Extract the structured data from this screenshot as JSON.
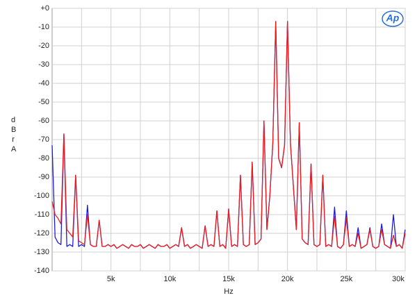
{
  "chart_data": {
    "type": "line",
    "xlabel": "Hz",
    "ylabel": "dBr A",
    "logo": "Ap",
    "xlim": [
      0,
      30000
    ],
    "ylim": [
      -140,
      0
    ],
    "xticks": [
      {
        "value": 5000,
        "label": "5k"
      },
      {
        "value": 10000,
        "label": "10k"
      },
      {
        "value": 15000,
        "label": "15k"
      },
      {
        "value": 20000,
        "label": "20k"
      },
      {
        "value": 25000,
        "label": "25k"
      },
      {
        "value": 30000,
        "label": "30k"
      }
    ],
    "x_minor_grid": [
      2500,
      7500,
      12500,
      17500,
      22500,
      27500
    ],
    "yticks": [
      {
        "value": 0,
        "label": "+0"
      },
      -10,
      -20,
      -30,
      -40,
      -50,
      -60,
      -70,
      -80,
      -90,
      -100,
      -110,
      -120,
      -130,
      -140
    ],
    "grid": true,
    "x": [
      0,
      250,
      500,
      750,
      1000,
      1250,
      1500,
      1750,
      2000,
      2250,
      2500,
      2750,
      3000,
      3250,
      3500,
      3750,
      4000,
      4250,
      4500,
      4750,
      5000,
      5250,
      5500,
      5750,
      6000,
      6250,
      6500,
      6750,
      7000,
      7250,
      7500,
      7750,
      8000,
      8250,
      8500,
      8750,
      9000,
      9250,
      9500,
      9750,
      10000,
      10250,
      10500,
      10750,
      11000,
      11250,
      11500,
      11750,
      12000,
      12250,
      12500,
      12750,
      13000,
      13250,
      13500,
      13750,
      14000,
      14250,
      14500,
      14750,
      15000,
      15250,
      15500,
      15750,
      16000,
      16250,
      16500,
      16750,
      17000,
      17250,
      17500,
      17750,
      18000,
      18250,
      18500,
      18750,
      19000,
      19250,
      19500,
      19750,
      20000,
      20250,
      20500,
      20750,
      21000,
      21250,
      21500,
      21750,
      22000,
      22250,
      22500,
      22750,
      23000,
      23250,
      23500,
      23750,
      24000,
      24250,
      24500,
      24750,
      25000,
      25250,
      25500,
      25750,
      26000,
      26250,
      26500,
      26750,
      27000,
      27250,
      27500,
      27750,
      28000,
      28250,
      28500,
      28750,
      29000,
      29250,
      29500,
      29750,
      30000
    ],
    "series": [
      {
        "color": "#1a1adc",
        "values": [
          -73,
          -122,
          -125,
          -126,
          -67,
          -127,
          -126,
          -127,
          -89,
          -127,
          -126,
          -127,
          -105,
          -126,
          -127,
          -127,
          -113,
          -127,
          -127,
          -126,
          -127,
          -126,
          -128,
          -127,
          -126,
          -127,
          -128,
          -126,
          -127,
          -127,
          -126,
          -128,
          -127,
          -126,
          -127,
          -128,
          -126,
          -127,
          -127,
          -126,
          -128,
          -127,
          -126,
          -127,
          -117,
          -127,
          -126,
          -128,
          -127,
          -126,
          -127,
          -128,
          -116,
          -127,
          -126,
          -127,
          -108,
          -127,
          -126,
          -128,
          -107,
          -127,
          -126,
          -127,
          -89,
          -126,
          -127,
          -126,
          -82,
          -126,
          -125,
          -123,
          -60,
          -118,
          -100,
          -72,
          -7,
          -80,
          -85,
          -73,
          -7,
          -72,
          -95,
          -118,
          -61,
          -123,
          -125,
          -126,
          -83,
          -126,
          -127,
          -126,
          -89,
          -127,
          -126,
          -127,
          -106,
          -127,
          -128,
          -126,
          -108,
          -127,
          -126,
          -127,
          -117,
          -128,
          -127,
          -126,
          -117,
          -127,
          -128,
          -127,
          -115,
          -126,
          -127,
          -128,
          -110,
          -127,
          -126,
          -128,
          -118
        ]
      },
      {
        "color": "#ee1c1c",
        "values": [
          -103,
          -110,
          -112,
          -115,
          -67,
          -118,
          -120,
          -122,
          -89,
          -124,
          -125,
          -126,
          -110,
          -126,
          -127,
          -127,
          -113,
          -127,
          -127,
          -126,
          -127,
          -126,
          -128,
          -127,
          -126,
          -127,
          -128,
          -126,
          -127,
          -127,
          -126,
          -128,
          -127,
          -126,
          -127,
          -128,
          -126,
          -127,
          -127,
          -126,
          -128,
          -127,
          -126,
          -127,
          -117,
          -127,
          -126,
          -128,
          -127,
          -126,
          -127,
          -128,
          -116,
          -127,
          -126,
          -127,
          -108,
          -127,
          -126,
          -128,
          -107,
          -127,
          -126,
          -127,
          -89,
          -126,
          -127,
          -126,
          -82,
          -126,
          -125,
          -123,
          -60,
          -118,
          -100,
          -72,
          -7,
          -80,
          -85,
          -73,
          -7,
          -72,
          -95,
          -118,
          -61,
          -123,
          -125,
          -126,
          -83,
          -126,
          -127,
          -126,
          -89,
          -127,
          -126,
          -127,
          -111,
          -127,
          -128,
          -126,
          -112,
          -127,
          -126,
          -127,
          -120,
          -128,
          -127,
          -126,
          -118,
          -127,
          -128,
          -127,
          -118,
          -126,
          -127,
          -128,
          -121,
          -127,
          -126,
          -128,
          -120
        ]
      }
    ]
  }
}
